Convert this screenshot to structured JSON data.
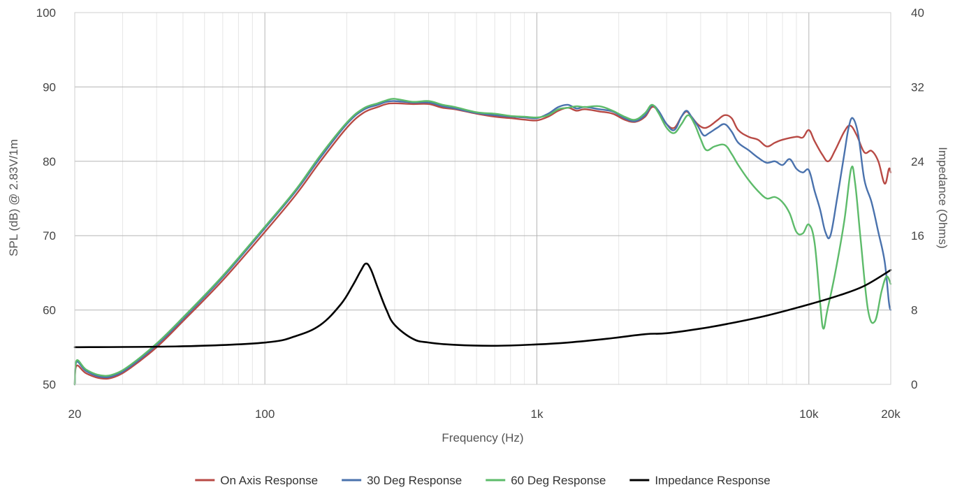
{
  "chart_data": {
    "type": "line",
    "xlabel": "Frequency (Hz)",
    "ylabel": "SPL (dB) @ 2.83V/1m",
    "y2label": "Impedance (Ohms)",
    "x_scale": "log",
    "xlim": [
      20,
      20000
    ],
    "ylim": [
      50,
      100
    ],
    "y2lim": [
      0,
      40
    ],
    "x_ticks": [
      {
        "value": 20,
        "label": "20"
      },
      {
        "value": 100,
        "label": "100"
      },
      {
        "value": 1000,
        "label": "1k"
      },
      {
        "value": 10000,
        "label": "10k"
      },
      {
        "value": 20000,
        "label": "20k"
      }
    ],
    "y_ticks": [
      {
        "value": 50,
        "label": "50"
      },
      {
        "value": 60,
        "label": "60"
      },
      {
        "value": 70,
        "label": "70"
      },
      {
        "value": 80,
        "label": "80"
      },
      {
        "value": 90,
        "label": "90"
      },
      {
        "value": 100,
        "label": "100"
      }
    ],
    "y2_ticks": [
      {
        "value": 0,
        "label": "0"
      },
      {
        "value": 8,
        "label": "8"
      },
      {
        "value": 16,
        "label": "16"
      },
      {
        "value": 24,
        "label": "24"
      },
      {
        "value": 32,
        "label": "32"
      },
      {
        "value": 40,
        "label": "40"
      }
    ],
    "grid": true,
    "legend_position": "bottom",
    "series": [
      {
        "name": "On Axis Response",
        "color": "#b84a45",
        "axis": "left",
        "points": [
          [
            20,
            50
          ],
          [
            20.3,
            52.5
          ],
          [
            22,
            51.5
          ],
          [
            25,
            50.8
          ],
          [
            28,
            51.0
          ],
          [
            32,
            52.2
          ],
          [
            40,
            55.0
          ],
          [
            50,
            58.5
          ],
          [
            70,
            64.0
          ],
          [
            100,
            70.5
          ],
          [
            130,
            75.5
          ],
          [
            160,
            80.0
          ],
          [
            200,
            84.5
          ],
          [
            230,
            86.5
          ],
          [
            260,
            87.3
          ],
          [
            280,
            87.7
          ],
          [
            300,
            87.8
          ],
          [
            350,
            87.7
          ],
          [
            400,
            87.7
          ],
          [
            450,
            87.2
          ],
          [
            500,
            87.0
          ],
          [
            600,
            86.4
          ],
          [
            700,
            86.0
          ],
          [
            800,
            85.8
          ],
          [
            900,
            85.6
          ],
          [
            1000,
            85.5
          ],
          [
            1100,
            86.0
          ],
          [
            1200,
            86.8
          ],
          [
            1300,
            87.2
          ],
          [
            1400,
            86.8
          ],
          [
            1500,
            87.0
          ],
          [
            1700,
            86.7
          ],
          [
            1900,
            86.4
          ],
          [
            2100,
            85.6
          ],
          [
            2300,
            85.3
          ],
          [
            2500,
            86.0
          ],
          [
            2650,
            87.3
          ],
          [
            2800,
            86.7
          ],
          [
            3000,
            85.0
          ],
          [
            3200,
            84.5
          ],
          [
            3400,
            86.0
          ],
          [
            3550,
            86.7
          ],
          [
            3700,
            86.0
          ],
          [
            3900,
            85.0
          ],
          [
            4100,
            84.5
          ],
          [
            4300,
            84.7
          ],
          [
            4600,
            85.5
          ],
          [
            4900,
            86.2
          ],
          [
            5200,
            85.8
          ],
          [
            5500,
            84.2
          ],
          [
            6000,
            83.3
          ],
          [
            6500,
            82.9
          ],
          [
            7000,
            82.0
          ],
          [
            7500,
            82.5
          ],
          [
            8000,
            82.9
          ],
          [
            9000,
            83.3
          ],
          [
            9500,
            83.2
          ],
          [
            10000,
            84.2
          ],
          [
            10500,
            82.7
          ],
          [
            11200,
            80.9
          ],
          [
            11800,
            80.0
          ],
          [
            12500,
            81.5
          ],
          [
            13500,
            84.0
          ],
          [
            14200,
            84.8
          ],
          [
            15000,
            83.5
          ],
          [
            16000,
            81.2
          ],
          [
            17000,
            81.4
          ],
          [
            18000,
            80.0
          ],
          [
            19000,
            77.0
          ],
          [
            19700,
            79.0
          ],
          [
            20000,
            78.5
          ]
        ]
      },
      {
        "name": "30 Deg Response",
        "color": "#4a72ad",
        "axis": "left",
        "points": [
          [
            20,
            50
          ],
          [
            20.3,
            53
          ],
          [
            22,
            51.8
          ],
          [
            25,
            51.0
          ],
          [
            28,
            51.2
          ],
          [
            32,
            52.4
          ],
          [
            40,
            55.3
          ],
          [
            50,
            58.8
          ],
          [
            70,
            64.4
          ],
          [
            100,
            71.0
          ],
          [
            130,
            76.0
          ],
          [
            160,
            80.5
          ],
          [
            200,
            85.0
          ],
          [
            230,
            86.9
          ],
          [
            260,
            87.6
          ],
          [
            280,
            88.0
          ],
          [
            300,
            88.1
          ],
          [
            350,
            87.9
          ],
          [
            400,
            87.9
          ],
          [
            450,
            87.4
          ],
          [
            500,
            87.1
          ],
          [
            600,
            86.5
          ],
          [
            700,
            86.2
          ],
          [
            800,
            86.0
          ],
          [
            900,
            85.9
          ],
          [
            1000,
            85.8
          ],
          [
            1100,
            86.4
          ],
          [
            1200,
            87.3
          ],
          [
            1300,
            87.6
          ],
          [
            1400,
            87.1
          ],
          [
            1500,
            87.3
          ],
          [
            1700,
            87.0
          ],
          [
            1900,
            86.7
          ],
          [
            2100,
            85.8
          ],
          [
            2300,
            85.4
          ],
          [
            2500,
            86.2
          ],
          [
            2650,
            87.5
          ],
          [
            2800,
            86.8
          ],
          [
            3000,
            85.0
          ],
          [
            3200,
            84.2
          ],
          [
            3400,
            86.0
          ],
          [
            3550,
            86.8
          ],
          [
            3700,
            86.0
          ],
          [
            3900,
            84.8
          ],
          [
            4100,
            83.5
          ],
          [
            4300,
            83.8
          ],
          [
            4600,
            84.5
          ],
          [
            4900,
            85.0
          ],
          [
            5200,
            84.0
          ],
          [
            5500,
            82.5
          ],
          [
            6000,
            81.5
          ],
          [
            6500,
            80.5
          ],
          [
            7000,
            79.8
          ],
          [
            7500,
            80.0
          ],
          [
            8000,
            79.5
          ],
          [
            8500,
            80.3
          ],
          [
            9000,
            79.0
          ],
          [
            9500,
            78.5
          ],
          [
            10000,
            78.8
          ],
          [
            10500,
            76.0
          ],
          [
            11000,
            73.5
          ],
          [
            11500,
            70.5
          ],
          [
            12000,
            70.0
          ],
          [
            12700,
            75.0
          ],
          [
            13500,
            81.0
          ],
          [
            14000,
            84.5
          ],
          [
            14500,
            85.8
          ],
          [
            15200,
            83.5
          ],
          [
            16000,
            77.5
          ],
          [
            17000,
            74.5
          ],
          [
            18000,
            70.5
          ],
          [
            19000,
            66.5
          ],
          [
            19700,
            61.0
          ],
          [
            20000,
            60.0
          ]
        ]
      },
      {
        "name": "60 Deg Response",
        "color": "#5dbb6a",
        "axis": "left",
        "points": [
          [
            20,
            50
          ],
          [
            20.3,
            53.2
          ],
          [
            22,
            52.0
          ],
          [
            25,
            51.2
          ],
          [
            28,
            51.4
          ],
          [
            32,
            52.6
          ],
          [
            40,
            55.5
          ],
          [
            50,
            59.0
          ],
          [
            70,
            64.6
          ],
          [
            100,
            71.2
          ],
          [
            130,
            76.2
          ],
          [
            160,
            80.8
          ],
          [
            200,
            85.2
          ],
          [
            230,
            87.1
          ],
          [
            260,
            87.8
          ],
          [
            280,
            88.2
          ],
          [
            300,
            88.4
          ],
          [
            350,
            88.0
          ],
          [
            400,
            88.1
          ],
          [
            450,
            87.6
          ],
          [
            500,
            87.3
          ],
          [
            600,
            86.6
          ],
          [
            700,
            86.4
          ],
          [
            800,
            86.1
          ],
          [
            900,
            86.0
          ],
          [
            1000,
            85.9
          ],
          [
            1100,
            86.2
          ],
          [
            1200,
            87.0
          ],
          [
            1300,
            87.2
          ],
          [
            1400,
            87.4
          ],
          [
            1500,
            87.3
          ],
          [
            1700,
            87.4
          ],
          [
            1900,
            86.8
          ],
          [
            2100,
            86.0
          ],
          [
            2300,
            85.6
          ],
          [
            2500,
            86.5
          ],
          [
            2650,
            87.6
          ],
          [
            2800,
            86.5
          ],
          [
            3000,
            84.5
          ],
          [
            3200,
            83.8
          ],
          [
            3400,
            85.0
          ],
          [
            3600,
            86.2
          ],
          [
            3800,
            85.0
          ],
          [
            4000,
            83.0
          ],
          [
            4200,
            81.5
          ],
          [
            4500,
            82.0
          ],
          [
            4900,
            82.2
          ],
          [
            5200,
            81.0
          ],
          [
            5500,
            79.5
          ],
          [
            6000,
            77.5
          ],
          [
            6500,
            76.0
          ],
          [
            7000,
            75.0
          ],
          [
            7500,
            75.2
          ],
          [
            8000,
            74.5
          ],
          [
            8500,
            73.0
          ],
          [
            9000,
            70.5
          ],
          [
            9500,
            70.3
          ],
          [
            10000,
            71.5
          ],
          [
            10500,
            69.0
          ],
          [
            11000,
            61.0
          ],
          [
            11300,
            57.5
          ],
          [
            11700,
            60.0
          ],
          [
            12500,
            65.0
          ],
          [
            13500,
            72.0
          ],
          [
            14300,
            79.0
          ],
          [
            14800,
            77.0
          ],
          [
            15500,
            69.5
          ],
          [
            16500,
            60.0
          ],
          [
            17500,
            58.5
          ],
          [
            18500,
            62.5
          ],
          [
            19300,
            64.5
          ],
          [
            20000,
            63.5
          ]
        ]
      },
      {
        "name": "Impedance Response",
        "color": "#000000",
        "axis": "right",
        "points": [
          [
            20,
            4.0
          ],
          [
            50,
            4.1
          ],
          [
            100,
            4.5
          ],
          [
            130,
            5.2
          ],
          [
            160,
            6.4
          ],
          [
            190,
            8.6
          ],
          [
            210,
            10.6
          ],
          [
            225,
            12.2
          ],
          [
            235,
            13.0
          ],
          [
            245,
            12.4
          ],
          [
            260,
            10.4
          ],
          [
            280,
            8.0
          ],
          [
            300,
            6.4
          ],
          [
            350,
            4.9
          ],
          [
            400,
            4.5
          ],
          [
            500,
            4.25
          ],
          [
            700,
            4.15
          ],
          [
            1000,
            4.3
          ],
          [
            1300,
            4.5
          ],
          [
            1800,
            4.9
          ],
          [
            2500,
            5.4
          ],
          [
            3000,
            5.5
          ],
          [
            4000,
            6.0
          ],
          [
            5000,
            6.5
          ],
          [
            7000,
            7.4
          ],
          [
            10000,
            8.6
          ],
          [
            13000,
            9.6
          ],
          [
            16000,
            10.6
          ],
          [
            20000,
            12.3
          ]
        ]
      }
    ]
  }
}
